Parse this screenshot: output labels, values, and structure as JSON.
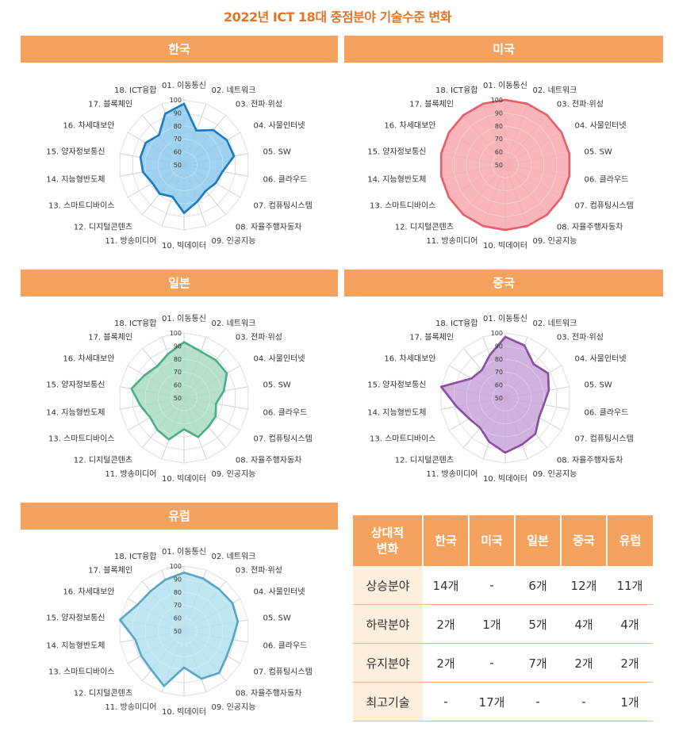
{
  "title": "2022년 ICT 18대 중점분야 기술수준 변화",
  "axes": [
    "01. 이동통신",
    "02. 네트워크",
    "03. 전파·위성",
    "04. 사물인터넷",
    "05. SW",
    "06. 클라우드",
    "07. 컴퓨팅시스템",
    "08. 자율주행자동차",
    "09. 인공지능",
    "10. 빅데이터",
    "11. 방송미디어",
    "12. 디지털콘텐츠",
    "13. 스마트디바이스",
    "14. 지능형반도체",
    "15. 양자정보통신",
    "16. 차세대보안",
    "17. 블록체인",
    "18. ICT융합"
  ],
  "ticks": [
    "50",
    "60",
    "70",
    "80",
    "90",
    "100"
  ],
  "chart_data": [
    {
      "type": "radar",
      "name": "한국",
      "color": "#1a7cc2",
      "fill": "#8ec9ee",
      "rlim": [
        50,
        100
      ],
      "values": [
        97,
        78,
        85,
        88,
        89,
        80,
        78,
        76,
        80,
        87,
        76,
        79,
        78,
        82,
        84,
        84,
        80,
        92
      ]
    },
    {
      "type": "radar",
      "name": "미국",
      "color": "#e85f6b",
      "fill": "#f7a8ae",
      "rlim": [
        50,
        100
      ],
      "values": [
        100,
        100,
        100,
        100,
        100,
        100,
        100,
        100,
        100,
        100,
        100,
        100,
        100,
        100,
        100,
        100,
        100,
        100
      ]
    },
    {
      "type": "radar",
      "name": "일본",
      "color": "#4cae84",
      "fill": "#a8dcc2",
      "rlim": [
        50,
        100
      ],
      "values": [
        93,
        88,
        88,
        88,
        81,
        75,
        78,
        79,
        82,
        74,
        84,
        82,
        80,
        84,
        91,
        85,
        82,
        86
      ]
    },
    {
      "type": "radar",
      "name": "중국",
      "color": "#8a4fa0",
      "fill": "#c9a5d8",
      "rlim": [
        50,
        100
      ],
      "values": [
        97,
        93,
        84,
        88,
        84,
        80,
        80,
        86,
        88,
        92,
        86,
        80,
        82,
        88,
        100,
        80,
        78,
        85
      ]
    },
    {
      "type": "radar",
      "name": "유럽",
      "color": "#5aa6c4",
      "fill": "#b3e0f0",
      "rlim": [
        50,
        100
      ],
      "values": [
        95,
        93,
        92,
        93,
        92,
        88,
        88,
        92,
        89,
        78,
        95,
        89,
        88,
        88,
        100,
        91,
        90,
        92
      ]
    }
  ],
  "table": {
    "corner": [
      "상대적",
      "변화"
    ],
    "columns": [
      "한국",
      "미국",
      "일본",
      "중국",
      "유럽"
    ],
    "rows": [
      {
        "label": "상승분야",
        "values": [
          "14개",
          "-",
          "6개",
          "12개",
          "11개"
        ]
      },
      {
        "label": "하락분야",
        "values": [
          "2개",
          "1개",
          "5개",
          "4개",
          "4개"
        ]
      },
      {
        "label": "유지분야",
        "values": [
          "2개",
          "-",
          "7개",
          "2개",
          "2개"
        ]
      },
      {
        "label": "최고기술",
        "values": [
          "-",
          "17개",
          "-",
          "-",
          "1개"
        ]
      }
    ]
  }
}
